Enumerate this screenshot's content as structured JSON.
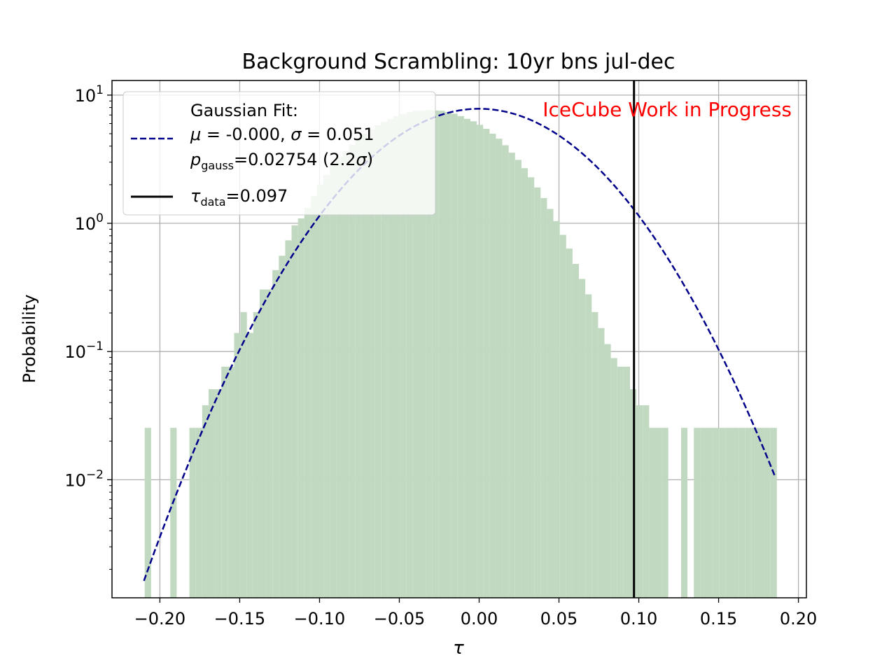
{
  "chart_data": {
    "type": "histogram",
    "title": "Background Scrambling: 10yr bns jul-dec",
    "xlabel": "τ",
    "ylabel": "Probability",
    "xlim": [
      -0.23,
      0.205
    ],
    "ylim": [
      0.0012,
      13
    ],
    "yscale": "log",
    "grid": true,
    "watermark": "IceCube Work in Progress",
    "x_ticks": [
      {
        "value": -0.2,
        "label": "−0.20"
      },
      {
        "value": -0.15,
        "label": "−0.15"
      },
      {
        "value": -0.1,
        "label": "−0.10"
      },
      {
        "value": -0.05,
        "label": "−0.05"
      },
      {
        "value": 0.0,
        "label": "0.00"
      },
      {
        "value": 0.05,
        "label": "0.05"
      },
      {
        "value": 0.1,
        "label": "0.10"
      },
      {
        "value": 0.15,
        "label": "0.15"
      },
      {
        "value": 0.2,
        "label": "0.20"
      }
    ],
    "y_ticks": [
      {
        "value": 0.01,
        "base": "10",
        "exp": "−2"
      },
      {
        "value": 0.1,
        "base": "10",
        "exp": "−1"
      },
      {
        "value": 1,
        "base": "10",
        "exp": "0"
      },
      {
        "value": 10,
        "base": "10",
        "exp": "1"
      }
    ],
    "histogram": {
      "color": "#c1d9c1",
      "bin_edges": [
        -0.2095,
        -0.2055,
        -0.2015,
        -0.1975,
        -0.1935,
        -0.1895,
        -0.1855,
        -0.1815,
        -0.1775,
        -0.1735,
        -0.1695,
        -0.1655,
        -0.1615,
        -0.1575,
        -0.1535,
        -0.1495,
        -0.1455,
        -0.1415,
        -0.1375,
        -0.1335,
        -0.1295,
        -0.1255,
        -0.1215,
        -0.1175,
        -0.1135,
        -0.1095,
        -0.1055,
        -0.1015,
        -0.0975,
        -0.0935,
        -0.0895,
        -0.0855,
        -0.0815,
        -0.0775,
        -0.0735,
        -0.0695,
        -0.0655,
        -0.0615,
        -0.0575,
        -0.0535,
        -0.0495,
        -0.0455,
        -0.0415,
        -0.0375,
        -0.0335,
        -0.0295,
        -0.0255,
        -0.0215,
        -0.0175,
        -0.0135,
        -0.0095,
        -0.0055,
        -0.0015,
        0.0025,
        0.0065,
        0.0105,
        0.0145,
        0.0185,
        0.0225,
        0.0265,
        0.0305,
        0.0345,
        0.0385,
        0.0425,
        0.0465,
        0.0505,
        0.0545,
        0.0585,
        0.0625,
        0.0665,
        0.0705,
        0.0745,
        0.0785,
        0.0825,
        0.0865,
        0.0905,
        0.0945,
        0.0985,
        0.1025,
        0.1065,
        0.1105,
        0.1145,
        0.1185,
        0.1225,
        0.1265,
        0.1305,
        0.1345,
        0.1385,
        0.1425,
        0.1465,
        0.1505,
        0.1545,
        0.1585,
        0.1625,
        0.1665,
        0.1705,
        0.1745,
        0.1785,
        0.1825,
        0.1865
      ],
      "counts": [
        0.0254,
        0,
        0,
        0,
        0.0254,
        0,
        0,
        0.0254,
        0.0254,
        0.0381,
        0.0508,
        0.0508,
        0.0762,
        0.0762,
        0.1397,
        0.2032,
        0.1397,
        0.2032,
        0.3048,
        0.3048,
        0.4318,
        0.5588,
        0.7366,
        0.9652,
        1.0922,
        1.3208,
        1.6256,
        2.0066,
        2.3876,
        2.8194,
        3.2766,
        3.6576,
        4.1148,
        4.572,
        5.0038,
        5.4102,
        5.8166,
        6.1976,
        6.5278,
        6.858,
        7.1628,
        7.366,
        7.5438,
        7.5946,
        7.6454,
        7.5946,
        7.5438,
        7.366,
        7.1628,
        6.858,
        6.5278,
        6.2484,
        5.8674,
        5.461,
        5.0038,
        4.572,
        4.064,
        3.556,
        3.1242,
        2.6924,
        2.286,
        1.905,
        1.5748,
        1.2954,
        1.0414,
        0.8128,
        0.635,
        0.4826,
        0.3683,
        0.2794,
        0.2032,
        0.1524,
        0.1143,
        0.0889,
        0.0762,
        0.0762,
        0.0508,
        0.0381,
        0.0381,
        0.0254,
        0.0254,
        0.0254,
        0,
        0,
        0.0254,
        0,
        0.0254,
        0.0254,
        0.0254,
        0.0254,
        0.0254,
        0.0254,
        0.0254,
        0.0254,
        0.0254,
        0.0254,
        0.0254,
        0.0254,
        0.0254
      ]
    },
    "gaussian_fit": {
      "mu": 0.0,
      "sigma": 0.051,
      "x_range": [
        -0.21,
        0.185
      ],
      "color": "#00008b",
      "style": "dashed"
    },
    "data_line": {
      "x": 0.097,
      "color": "#000000"
    },
    "legend": {
      "position": "upper-left",
      "gaussian_header": "Gaussian Fit:",
      "gaussian_params_a": "μ",
      "gaussian_params_b": " = -0.000, ",
      "gaussian_params_c": "σ",
      "gaussian_params_d": " = 0.051",
      "pgauss_base": "p",
      "pgauss_sub": "gauss",
      "pgauss_value": "=0.02754 (2.2",
      "pgauss_sigma": "σ",
      "pgauss_close": ")",
      "tau_base": "τ",
      "tau_sub": "data",
      "tau_value": "=0.097"
    }
  }
}
